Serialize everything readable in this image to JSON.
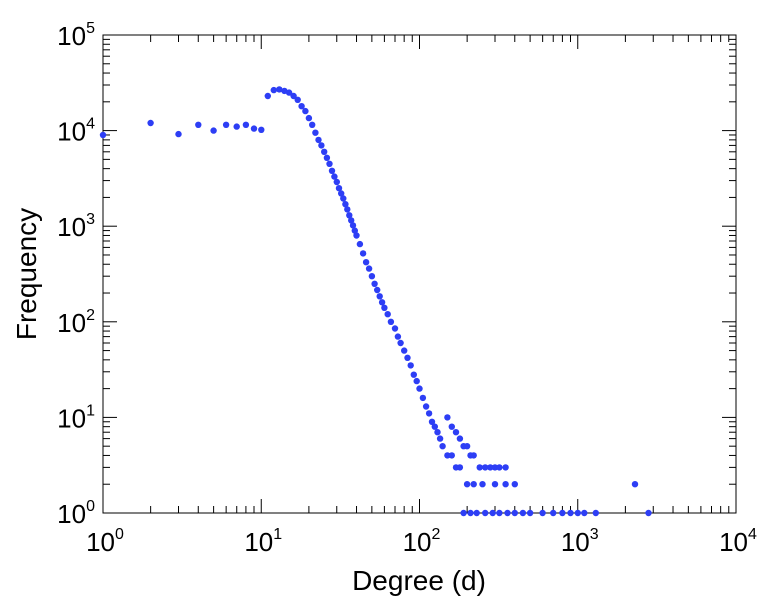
{
  "chart_data": {
    "type": "scatter",
    "title": "",
    "xlabel": "Degree (d)",
    "ylabel": "Frequency",
    "xscale": "log",
    "yscale": "log",
    "xlim": [
      1,
      10000
    ],
    "ylim": [
      1,
      100000
    ],
    "grid": false,
    "x_ticks": [
      {
        "base": "10",
        "exp": "0"
      },
      {
        "base": "10",
        "exp": "1"
      },
      {
        "base": "10",
        "exp": "2"
      },
      {
        "base": "10",
        "exp": "3"
      },
      {
        "base": "10",
        "exp": "4"
      }
    ],
    "y_ticks": [
      {
        "base": "10",
        "exp": "0"
      },
      {
        "base": "10",
        "exp": "1"
      },
      {
        "base": "10",
        "exp": "2"
      },
      {
        "base": "10",
        "exp": "3"
      },
      {
        "base": "10",
        "exp": "4"
      },
      {
        "base": "10",
        "exp": "5"
      }
    ],
    "marker_color": "#2d3ef5",
    "series": [
      {
        "points": [
          [
            1,
            9000
          ],
          [
            2,
            12000
          ],
          [
            3,
            9200
          ],
          [
            4,
            11500
          ],
          [
            5,
            10000
          ],
          [
            6,
            11500
          ],
          [
            7,
            11000
          ],
          [
            8,
            11500
          ],
          [
            9,
            10500
          ],
          [
            10,
            10200
          ],
          [
            11,
            23000
          ],
          [
            12,
            26500
          ],
          [
            13,
            27000
          ],
          [
            14,
            26000
          ],
          [
            15,
            25000
          ],
          [
            16,
            23000
          ],
          [
            17,
            21000
          ],
          [
            18,
            18000
          ],
          [
            19,
            16000
          ],
          [
            20,
            13500
          ],
          [
            21,
            11500
          ],
          [
            22,
            9500
          ],
          [
            23,
            8000
          ],
          [
            24,
            7000
          ],
          [
            25,
            6000
          ],
          [
            26,
            5200
          ],
          [
            27,
            4500
          ],
          [
            28,
            3800
          ],
          [
            29,
            3300
          ],
          [
            30,
            2900
          ],
          [
            31,
            2500
          ],
          [
            32,
            2200
          ],
          [
            33,
            1950
          ],
          [
            34,
            1700
          ],
          [
            35,
            1500
          ],
          [
            36,
            1300
          ],
          [
            37,
            1150
          ],
          [
            38,
            1020
          ],
          [
            39,
            900
          ],
          [
            40,
            800
          ],
          [
            42,
            650
          ],
          [
            44,
            520
          ],
          [
            46,
            420
          ],
          [
            48,
            360
          ],
          [
            50,
            300
          ],
          [
            52,
            250
          ],
          [
            54,
            215
          ],
          [
            56,
            185
          ],
          [
            58,
            160
          ],
          [
            60,
            140
          ],
          [
            63,
            120
          ],
          [
            66,
            100
          ],
          [
            70,
            85
          ],
          [
            73,
            70
          ],
          [
            76,
            60
          ],
          [
            80,
            50
          ],
          [
            84,
            42
          ],
          [
            88,
            35
          ],
          [
            92,
            28
          ],
          [
            96,
            24
          ],
          [
            100,
            20
          ],
          [
            105,
            16
          ],
          [
            110,
            13
          ],
          [
            115,
            11
          ],
          [
            120,
            9
          ],
          [
            125,
            8
          ],
          [
            130,
            7
          ],
          [
            135,
            6
          ],
          [
            140,
            5
          ],
          [
            150,
            4
          ],
          [
            160,
            4
          ],
          [
            170,
            3
          ],
          [
            180,
            3
          ],
          [
            200,
            2
          ],
          [
            220,
            2
          ],
          [
            250,
            2
          ],
          [
            300,
            2
          ],
          [
            350,
            2
          ],
          [
            400,
            2
          ],
          [
            150,
            10
          ],
          [
            160,
            8
          ],
          [
            170,
            7
          ],
          [
            180,
            6
          ],
          [
            190,
            5
          ],
          [
            200,
            5
          ],
          [
            210,
            4
          ],
          [
            220,
            4
          ],
          [
            240,
            3
          ],
          [
            260,
            3
          ],
          [
            280,
            3
          ],
          [
            300,
            3
          ],
          [
            320,
            3
          ],
          [
            350,
            3
          ],
          [
            190,
            1
          ],
          [
            210,
            1
          ],
          [
            230,
            1
          ],
          [
            260,
            1
          ],
          [
            290,
            1
          ],
          [
            320,
            1
          ],
          [
            360,
            1
          ],
          [
            400,
            1
          ],
          [
            450,
            1
          ],
          [
            500,
            1
          ],
          [
            600,
            1
          ],
          [
            700,
            1
          ],
          [
            800,
            1
          ],
          [
            900,
            1
          ],
          [
            1000,
            1
          ],
          [
            1100,
            1
          ],
          [
            1300,
            1
          ],
          [
            2300,
            2
          ],
          [
            2800,
            1
          ]
        ]
      }
    ]
  }
}
